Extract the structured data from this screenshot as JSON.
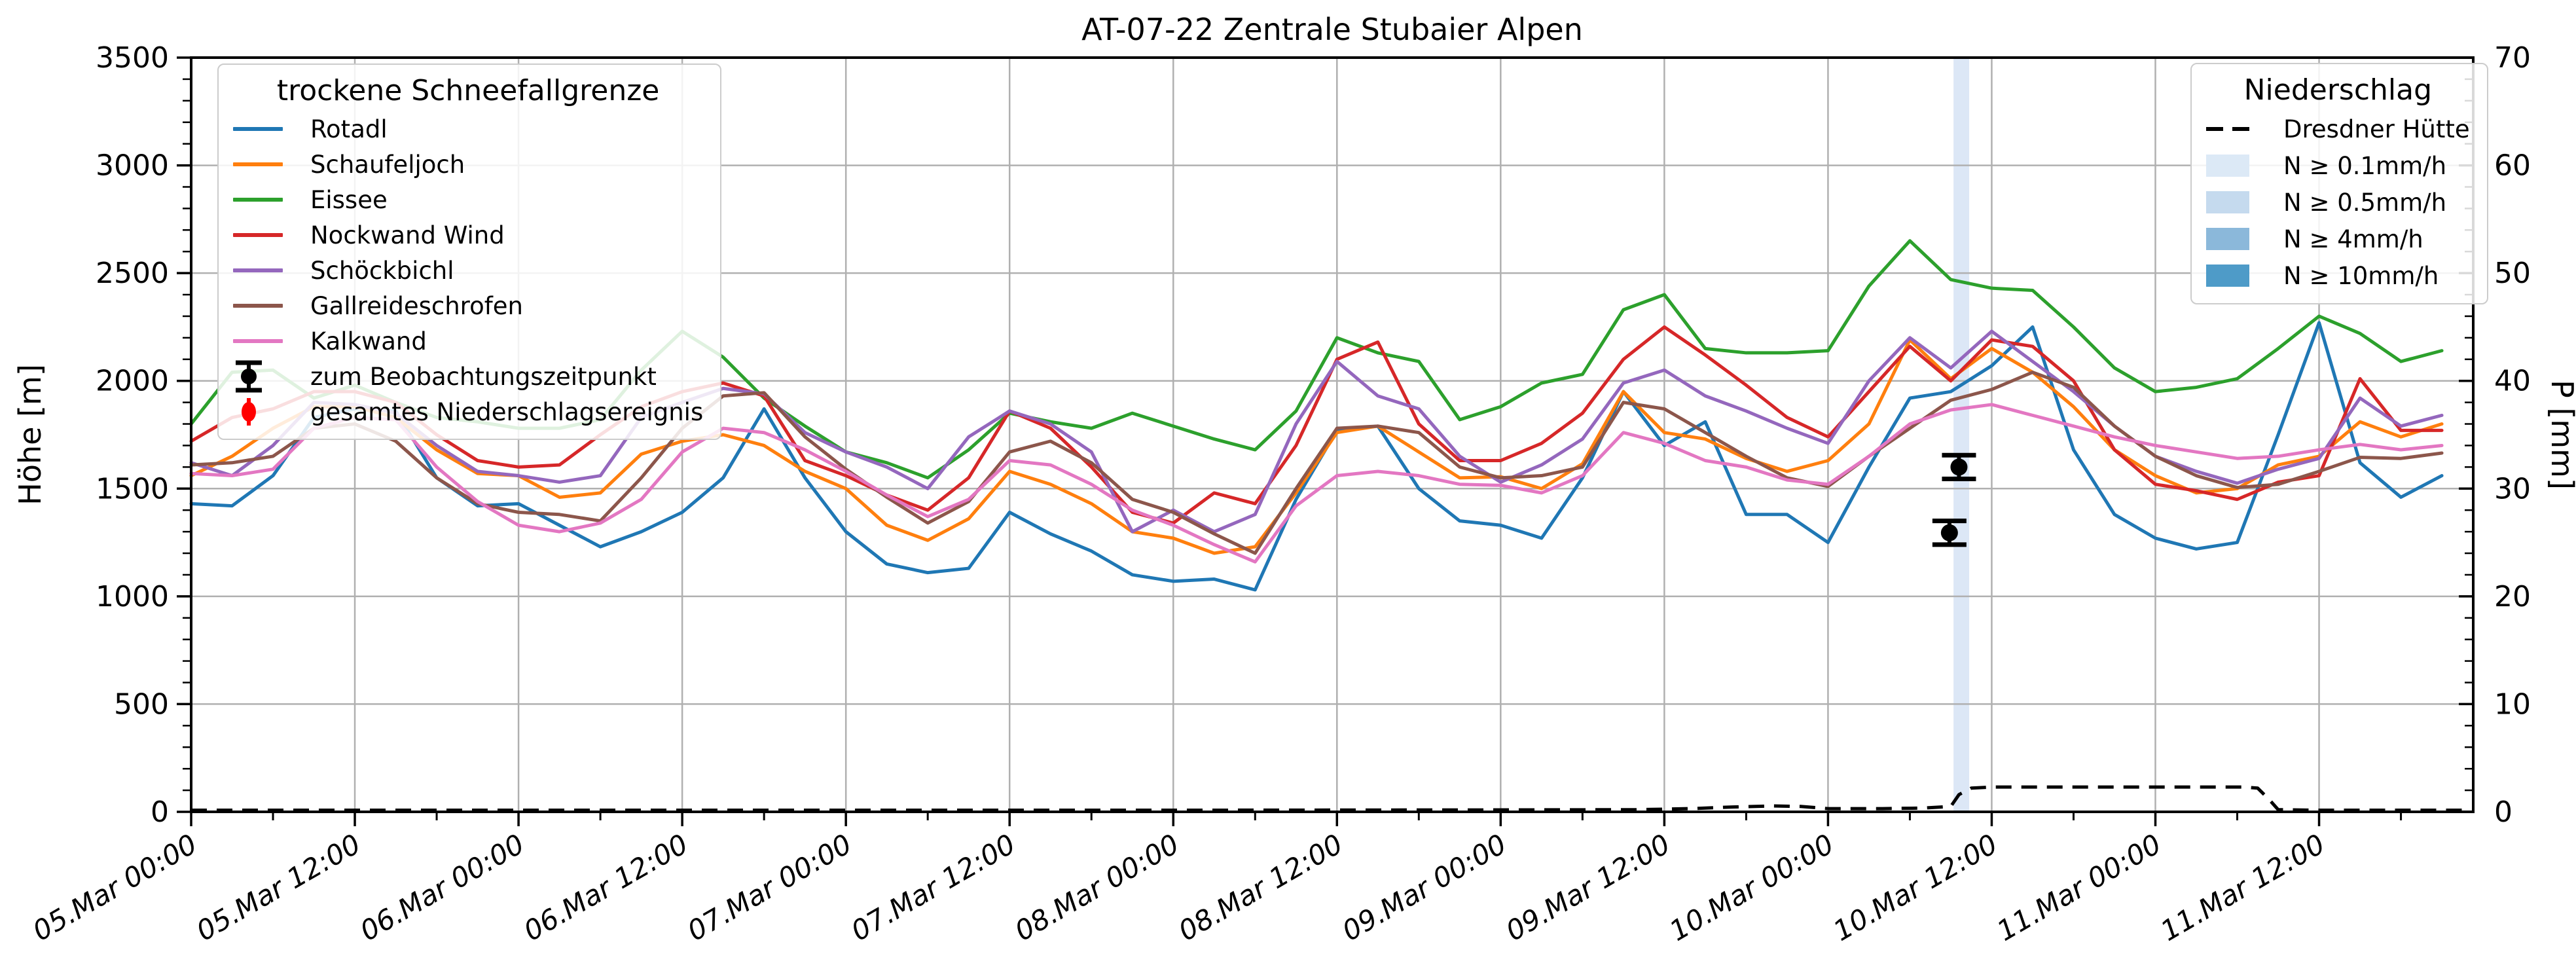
{
  "title": "AT-07-22 Zentrale Stubaier Alpen",
  "axes": {
    "x": {
      "tick_hours": [
        0,
        12,
        24,
        36,
        48,
        60,
        72,
        84,
        96,
        108,
        120,
        132,
        144,
        156
      ],
      "tick_labels": [
        "05.Mar 00:00",
        "05.Mar 12:00",
        "06.Mar 00:00",
        "06.Mar 12:00",
        "07.Mar 00:00",
        "07.Mar 12:00",
        "08.Mar 00:00",
        "08.Mar 12:00",
        "09.Mar 00:00",
        "09.Mar 12:00",
        "10.Mar 00:00",
        "10.Mar 12:00",
        "11.Mar 00:00",
        "11.Mar 12:00"
      ],
      "minor_step_hours": 6,
      "range_hours": [
        0,
        167.3
      ]
    },
    "y_left": {
      "label": "Höhe [m]",
      "ticks": [
        0,
        500,
        1000,
        1500,
        2000,
        2500,
        3000,
        3500
      ],
      "minor_step": 100,
      "range": [
        0,
        3500
      ]
    },
    "y_right": {
      "label": "P [mm]",
      "ticks": [
        0,
        10,
        20,
        30,
        40,
        50,
        60,
        70
      ],
      "minor_step": 2,
      "range": [
        0,
        70
      ]
    }
  },
  "style": {
    "grid_color": "#b0b0b0",
    "spine_color": "#000000",
    "band_color": "#dce7f6",
    "observation_color": "#000000",
    "event_marker_color": "#ff0000",
    "dashed_color": "#000000"
  },
  "legend_left": {
    "title": "trockene Schneefallgrenze",
    "line_entries": [
      {
        "label": "Rotadl",
        "color": "#1f77b4"
      },
      {
        "label": "Schaufeljoch",
        "color": "#ff7f0e"
      },
      {
        "label": "Eissee",
        "color": "#2ca02c"
      },
      {
        "label": "Nockwand Wind",
        "color": "#d62728"
      },
      {
        "label": "Schöckbichl",
        "color": "#9467bd"
      },
      {
        "label": "Gallreideschrofen",
        "color": "#8c564b"
      },
      {
        "label": "Kalkwand",
        "color": "#e377c2"
      }
    ],
    "marker_entries": [
      {
        "label": "zum Beobachtungszeitpunkt",
        "color": "#000000",
        "marker": "errorbar-circle-caps"
      },
      {
        "label": "gesamtes Niederschlagsereignis",
        "color": "#ff0000",
        "marker": "errorbar-ellipse"
      }
    ]
  },
  "legend_right": {
    "title": "Niederschlag",
    "dashed_entry": {
      "label": "Dresdner Hütte",
      "color": "#000000"
    },
    "patch_entries": [
      {
        "label": "N ≥ 0.1mm/h",
        "color": "#dce9f6"
      },
      {
        "label": "N ≥ 0.5mm/h",
        "color": "#c5daee"
      },
      {
        "label": "N ≥ 4mm/h",
        "color": "#8bb8da"
      },
      {
        "label": "N ≥ 10mm/h",
        "color": "#4e9bc8"
      }
    ]
  },
  "chart_data": {
    "type": "line",
    "title": "AT-07-22 Zentrale Stubaier Alpen",
    "xlabel": "",
    "ylabel_left": "Höhe [m]",
    "ylabel_right": "P [mm]",
    "ylim_left": [
      0,
      3500
    ],
    "ylim_right": [
      0,
      70
    ],
    "grid": true,
    "x_start": "05.Mar 00:00",
    "x_unit": "hours since 05.Mar 00:00",
    "x_hours": [
      0,
      3,
      6,
      9,
      12,
      15,
      18,
      21,
      24,
      27,
      30,
      33,
      36,
      39,
      42,
      45,
      48,
      51,
      54,
      57,
      60,
      63,
      66,
      69,
      72,
      75,
      78,
      81,
      84,
      87,
      90,
      93,
      96,
      99,
      102,
      105,
      108,
      111,
      114,
      117,
      120,
      123,
      126,
      129,
      132,
      135,
      138,
      141,
      144,
      147,
      150,
      153,
      156,
      159,
      162,
      165
    ],
    "series": [
      {
        "name": "Rotadl",
        "color": "#1f77b4",
        "values": [
          1430,
          1420,
          1560,
          1830,
          1870,
          1860,
          1550,
          1420,
          1430,
          1330,
          1230,
          1300,
          1390,
          1550,
          1870,
          1550,
          1300,
          1150,
          1110,
          1130,
          1390,
          1290,
          1210,
          1100,
          1070,
          1080,
          1030,
          1450,
          1770,
          1790,
          1500,
          1350,
          1330,
          1270,
          1550,
          1950,
          1700,
          1810,
          1380,
          1380,
          1250,
          1600,
          1920,
          1950,
          2070,
          2250,
          1680,
          1380,
          1270,
          1220,
          1250,
          1750,
          2270,
          1620,
          1460,
          1560
        ]
      },
      {
        "name": "Schaufeljoch",
        "color": "#ff7f0e",
        "values": [
          1560,
          1650,
          1780,
          1880,
          1880,
          1830,
          1680,
          1570,
          1560,
          1460,
          1480,
          1660,
          1720,
          1750,
          1700,
          1580,
          1500,
          1330,
          1260,
          1360,
          1580,
          1520,
          1430,
          1300,
          1270,
          1200,
          1230,
          1480,
          1760,
          1790,
          1670,
          1550,
          1555,
          1500,
          1615,
          1950,
          1760,
          1730,
          1640,
          1580,
          1630,
          1800,
          2190,
          2010,
          2150,
          2040,
          1880,
          1680,
          1560,
          1480,
          1500,
          1610,
          1650,
          1810,
          1740,
          1800
        ]
      },
      {
        "name": "Eissee",
        "color": "#2ca02c",
        "values": [
          1800,
          2040,
          2050,
          1920,
          1980,
          1900,
          1830,
          1810,
          1780,
          1780,
          1820,
          2050,
          2230,
          2110,
          1920,
          1790,
          1670,
          1620,
          1550,
          1680,
          1850,
          1810,
          1780,
          1850,
          1790,
          1730,
          1680,
          1860,
          2200,
          2130,
          2090,
          1820,
          1880,
          1990,
          2030,
          2330,
          2400,
          2150,
          2130,
          2130,
          2140,
          2440,
          2650,
          2470,
          2430,
          2420,
          2250,
          2060,
          1950,
          1970,
          2010,
          2150,
          2300,
          2220,
          2090,
          2140
        ]
      },
      {
        "name": "Nockwand Wind",
        "color": "#d62728",
        "values": [
          1720,
          1830,
          1870,
          1950,
          1950,
          1900,
          1750,
          1630,
          1600,
          1610,
          1750,
          1880,
          1950,
          1990,
          1930,
          1630,
          1560,
          1470,
          1400,
          1550,
          1860,
          1780,
          1600,
          1390,
          1340,
          1480,
          1430,
          1700,
          2100,
          2180,
          1800,
          1630,
          1630,
          1710,
          1850,
          2100,
          2250,
          2120,
          1980,
          1830,
          1740,
          1950,
          2160,
          2000,
          2190,
          2160,
          2000,
          1680,
          1520,
          1490,
          1450,
          1530,
          1560,
          2010,
          1770,
          1770
        ]
      },
      {
        "name": "Schöckbichl",
        "color": "#9467bd",
        "values": [
          1620,
          1560,
          1700,
          1900,
          1890,
          1850,
          1700,
          1580,
          1560,
          1530,
          1560,
          1830,
          1900,
          1965,
          1940,
          1760,
          1670,
          1600,
          1500,
          1740,
          1860,
          1800,
          1670,
          1300,
          1400,
          1300,
          1380,
          1800,
          2090,
          1930,
          1870,
          1650,
          1530,
          1610,
          1730,
          1990,
          2050,
          1930,
          1860,
          1780,
          1710,
          2000,
          2200,
          2060,
          2230,
          2090,
          1950,
          1790,
          1650,
          1580,
          1525,
          1590,
          1640,
          1920,
          1790,
          1840
        ]
      },
      {
        "name": "Gallreideschrofen",
        "color": "#8c564b",
        "values": [
          1610,
          1620,
          1650,
          1780,
          1800,
          1720,
          1550,
          1430,
          1390,
          1380,
          1350,
          1550,
          1780,
          1930,
          1945,
          1740,
          1590,
          1460,
          1340,
          1440,
          1670,
          1720,
          1620,
          1450,
          1390,
          1290,
          1200,
          1500,
          1780,
          1790,
          1760,
          1600,
          1550,
          1560,
          1600,
          1900,
          1870,
          1760,
          1650,
          1550,
          1510,
          1650,
          1780,
          1910,
          1960,
          2040,
          1970,
          1790,
          1650,
          1560,
          1505,
          1520,
          1580,
          1645,
          1640,
          1665
        ]
      },
      {
        "name": "Kalkwand",
        "color": "#e377c2",
        "values": [
          1570,
          1560,
          1590,
          1780,
          1830,
          1820,
          1600,
          1440,
          1330,
          1300,
          1340,
          1450,
          1670,
          1780,
          1760,
          1680,
          1580,
          1470,
          1370,
          1450,
          1630,
          1610,
          1520,
          1400,
          1330,
          1240,
          1160,
          1420,
          1560,
          1580,
          1560,
          1520,
          1515,
          1480,
          1560,
          1760,
          1710,
          1630,
          1600,
          1540,
          1520,
          1650,
          1800,
          1865,
          1890,
          1840,
          1790,
          1740,
          1700,
          1670,
          1640,
          1650,
          1680,
          1705,
          1680,
          1700
        ]
      }
    ],
    "precip_event_band": {
      "label": "N ≥ 0.1mm/h",
      "start_hour": 129.2,
      "end_hour": 130.35,
      "color": "#dce7f6"
    },
    "observations": [
      {
        "hour": 128.9,
        "height_m": 1295,
        "err_m": 55
      },
      {
        "hour": 129.6,
        "height_m": 1600,
        "err_m": 55
      }
    ],
    "dresdner_huette_precip_mm": {
      "x_hours": [
        0,
        24,
        48,
        72,
        96,
        106,
        110,
        113,
        116,
        118,
        120,
        124,
        127,
        129,
        129.6,
        130.5,
        132,
        136,
        140,
        144,
        148,
        150.5,
        151.5,
        152.3,
        153,
        156,
        160,
        164,
        167
      ],
      "values": [
        0.15,
        0.15,
        0.15,
        0.15,
        0.18,
        0.2,
        0.3,
        0.45,
        0.55,
        0.5,
        0.3,
        0.3,
        0.35,
        0.5,
        1.6,
        2.2,
        2.3,
        2.3,
        2.3,
        2.3,
        2.3,
        2.3,
        2.2,
        1.2,
        0.2,
        0.15,
        0.15,
        0.15,
        0.15
      ]
    }
  }
}
